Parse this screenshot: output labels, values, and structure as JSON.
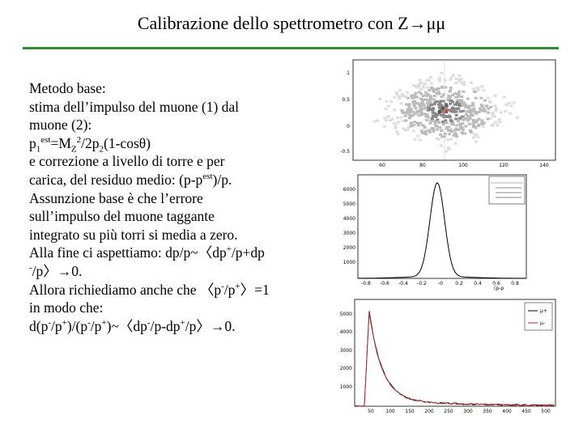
{
  "slide": {
    "title": "Calibrazione dello spettrometro con Z→μμ",
    "accent_color": "#2e8b3a",
    "lines": [
      {
        "parts": [
          {
            "t": "Metodo base:"
          }
        ]
      },
      {
        "parts": [
          {
            "t": "stima dell’impulso del muone (1) dal"
          }
        ]
      },
      {
        "parts": [
          {
            "t": "muone (2):"
          }
        ]
      },
      {
        "parts": [
          {
            "t": "p"
          },
          {
            "t": "1",
            "sub": true
          },
          {
            "t": "est",
            "sup": true
          },
          {
            "t": "=M"
          },
          {
            "t": "Z",
            "sub": true
          },
          {
            "t": "2",
            "sup": true
          },
          {
            "t": "/2p"
          },
          {
            "t": "2",
            "sub": true
          },
          {
            "t": "(1-cosθ)"
          }
        ]
      },
      {
        "parts": [
          {
            "t": "e correzione a livello di torre e per"
          }
        ]
      },
      {
        "parts": [
          {
            "t": "carica, del residuo medio: (p-p"
          },
          {
            "t": "est",
            "sup": true
          },
          {
            "t": ")/p."
          }
        ]
      },
      {
        "parts": [
          {
            "t": "Assunzione base è che l’errore"
          }
        ]
      },
      {
        "parts": [
          {
            "t": "sull’impulso del muone taggante"
          }
        ]
      },
      {
        "parts": [
          {
            "t": "integrato su più torri si media a zero."
          }
        ]
      },
      {
        "parts": [
          {
            "t": "Alla fine ci aspettiamo: dp/p~〈dp"
          },
          {
            "t": "+",
            "sup": true
          },
          {
            "t": "/p+dp"
          }
        ]
      },
      {
        "parts": [
          {
            "t": "-",
            "sup": true
          },
          {
            "t": "/p〉→0."
          }
        ]
      },
      {
        "parts": [
          {
            "t": "Allora richiediamo anche che 〈p"
          },
          {
            "t": "-",
            "sup": true
          },
          {
            "t": "/p"
          },
          {
            "t": "+",
            "sup": true
          },
          {
            "t": "〉=1"
          }
        ]
      },
      {
        "parts": [
          {
            "t": "in modo che:"
          }
        ]
      },
      {
        "parts": [
          {
            "t": "d(p"
          },
          {
            "t": "-",
            "sup": true
          },
          {
            "t": "/p"
          },
          {
            "t": "+",
            "sup": true
          },
          {
            "t": ")/(p"
          },
          {
            "t": "-",
            "sup": true
          },
          {
            "t": "/p"
          },
          {
            "t": "+",
            "sup": true
          },
          {
            "t": ")~〈dp"
          },
          {
            "t": "-",
            "sup": true
          },
          {
            "t": "/p-dp"
          },
          {
            "t": "+",
            "sup": true
          },
          {
            "t": "/p〉→0."
          }
        ]
      }
    ]
  },
  "plot_top": {
    "yticks": [
      "1",
      "0.5",
      "0",
      "-0.5"
    ],
    "xticks": [
      "60",
      "80",
      "100",
      "120",
      "140"
    ]
  },
  "plot_mid": {
    "yticks": [
      "6000",
      "5000",
      "4000",
      "3000",
      "2000",
      "1000"
    ],
    "xticks": [
      "-0.8",
      "-0.6",
      "-0.4",
      "-0.2",
      "-0",
      "0.2",
      "0.4",
      "0.6",
      "0.8"
    ],
    "xlabel": "(p-p",
    "line_color": "#000000"
  },
  "plot_bot": {
    "yticks": [
      "5000",
      "4000",
      "3000",
      "2000",
      "1000"
    ],
    "xticks": [
      "50",
      "100",
      "150",
      "200",
      "250",
      "300",
      "350",
      "400",
      "450",
      "500"
    ],
    "legend": [
      "μ+",
      "μ-"
    ],
    "colors": {
      "mu_plus": "#000000",
      "mu_minus": "#cc2222"
    }
  }
}
